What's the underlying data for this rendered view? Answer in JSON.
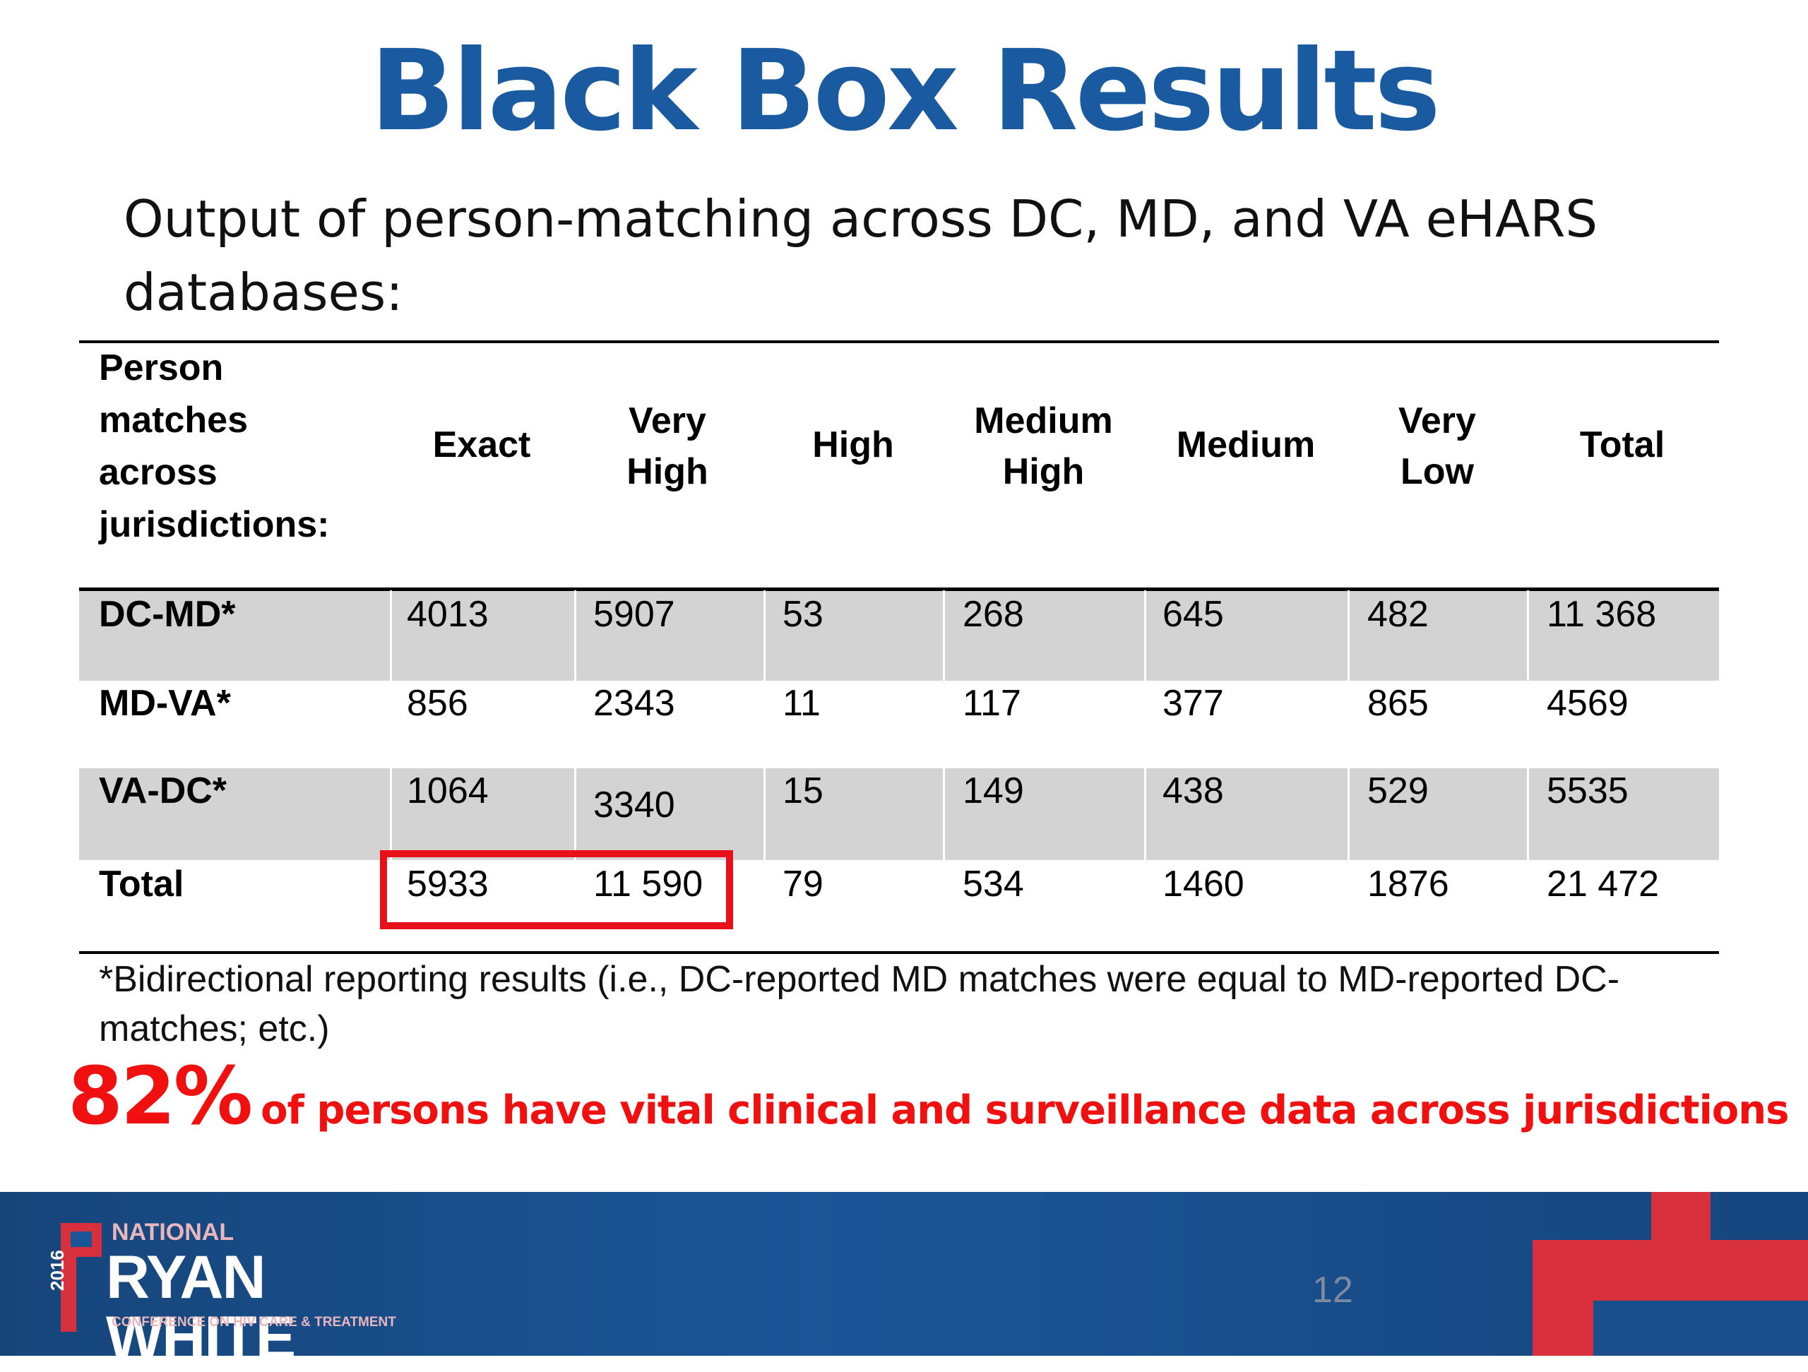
{
  "slide": {
    "title": "Black Box Results",
    "subtitle": "Output of person-matching across DC, MD, and VA eHARS databases:",
    "slide_number": "12"
  },
  "table": {
    "headers": [
      "Person matches across jurisdictions:",
      "Exact",
      "Very High",
      "High",
      "Medium High",
      "Medium",
      "Very Low",
      "Total"
    ],
    "rows": [
      {
        "label": "DC-MD*",
        "cells": [
          "4013",
          "5907",
          "53",
          "268",
          "645",
          "482",
          "11 368"
        ],
        "shaded": true
      },
      {
        "label": "MD-VA*",
        "cells": [
          "856",
          "2343",
          "11",
          "117",
          "377",
          "865",
          "4569"
        ],
        "shaded": false
      },
      {
        "label": "VA-DC*",
        "cells": [
          "1064",
          "3340",
          "15",
          "149",
          "438",
          "529",
          "5535"
        ],
        "shaded": true
      },
      {
        "label": "Total",
        "cells": [
          "5933",
          "11 590",
          "79",
          "534",
          "1460",
          "1876",
          "21 472"
        ],
        "shaded": false
      }
    ],
    "highlighted_cells": [
      "Total/Exact",
      "Total/Very High"
    ],
    "highlight_color": "#e8101a"
  },
  "footnote": "*Bidirectional reporting results (i.e., DC-reported MD matches were equal to MD-reported DC-matches; etc.)",
  "callout": {
    "percent": "82%",
    "text": "of persons have vital clinical and surveillance data across jurisdictions",
    "color": "#f01010"
  },
  "logo": {
    "line1": "NATIONAL",
    "line2": "RYAN WHITE",
    "line3": "CONFERENCE ON HIV CARE & TREATMENT",
    "year": "2016"
  },
  "colors": {
    "title": "#1a5aa0",
    "footer_band": "#1b5597",
    "accent_red": "#d9303e",
    "row_shade": "#d3d3d3"
  }
}
